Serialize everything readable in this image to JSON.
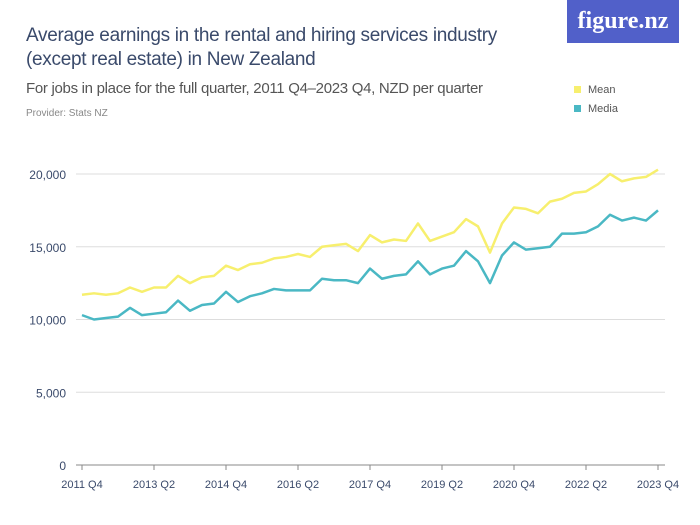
{
  "title": "Average earnings in the rental and hiring services industry (except real estate) in New Zealand",
  "subtitle": "For jobs in place for the full quarter, 2011 Q4–2023 Q4, NZD per quarter",
  "provider": "Provider: Stats NZ",
  "logo": "figure.nz",
  "chart_data": {
    "type": "line",
    "title": "Average earnings in the rental and hiring services industry (except real estate) in New Zealand",
    "x_start": "2011 Q4",
    "x_end": "2023 Q4",
    "frequency": "quarterly",
    "xticks": [
      "2011 Q4",
      "2013 Q2",
      "2014 Q4",
      "2016 Q2",
      "2017 Q4",
      "2019 Q2",
      "2020 Q4",
      "2022 Q2",
      "2023 Q4"
    ],
    "yticks": [
      "0",
      "5,000",
      "10,000",
      "15,000",
      "20,000"
    ],
    "ylim": [
      0,
      20000
    ],
    "grid": true,
    "legend": "top-right",
    "series": [
      {
        "name": "Mean",
        "color": "#f7ef6e",
        "values": [
          11700,
          11800,
          11700,
          11800,
          12200,
          11900,
          12200,
          12200,
          13000,
          12500,
          12900,
          13000,
          13700,
          13400,
          13800,
          13900,
          14200,
          14300,
          14500,
          14300,
          15000,
          15100,
          15200,
          14700,
          15800,
          15300,
          15500,
          15400,
          16600,
          15400,
          15700,
          16000,
          16900,
          16400,
          14600,
          16600,
          17700,
          17600,
          17300,
          18100,
          18300,
          18700,
          18800,
          19300,
          20000,
          19500,
          19700,
          19800,
          20300
        ]
      },
      {
        "name": "Media",
        "color": "#4ab8c4",
        "values": [
          10300,
          10000,
          10100,
          10200,
          10800,
          10300,
          10400,
          10500,
          11300,
          10600,
          11000,
          11100,
          11900,
          11200,
          11600,
          11800,
          12100,
          12000,
          12000,
          12000,
          12800,
          12700,
          12700,
          12500,
          13500,
          12800,
          13000,
          13100,
          14000,
          13100,
          13500,
          13700,
          14700,
          14000,
          12500,
          14400,
          15300,
          14800,
          14900,
          15000,
          15900,
          15900,
          16000,
          16400,
          17200,
          16800,
          17000,
          16800,
          17500
        ]
      }
    ]
  }
}
